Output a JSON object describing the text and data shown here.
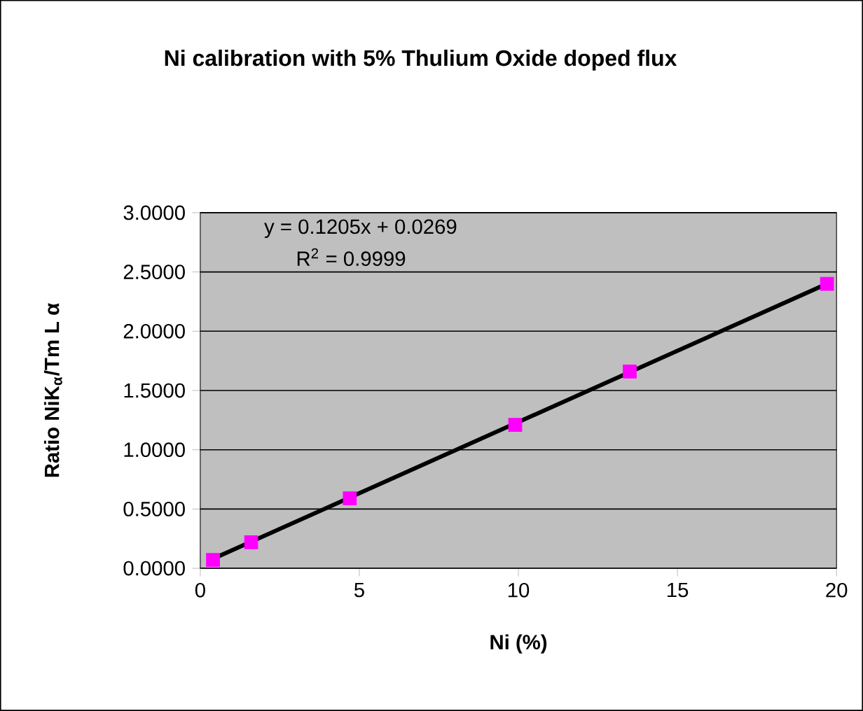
{
  "chart_data": {
    "type": "scatter",
    "title": "Ni calibration with 5% Thulium Oxide doped flux",
    "xlabel": "Ni (%)",
    "ylabel": "Ratio NiK$_{α}$/Tm L α",
    "annotations": [
      "y = 0.1205x + 0.0269",
      "R$^{2}$ = 0.9999"
    ],
    "series": [
      {
        "color": "#ff00ff",
        "marker": "square",
        "x": [
          0.4,
          1.6,
          4.7,
          9.9,
          13.5,
          19.7
        ],
        "values": [
          0.07,
          0.22,
          0.59,
          1.21,
          1.66,
          2.4
        ]
      },
      {
        "type": "line",
        "color": "#000000",
        "line_style": "solid",
        "marker": "none",
        "x": [
          0.4,
          19.7
        ],
        "values": [
          0.08,
          2.4
        ]
      }
    ],
    "xlim": [
      0,
      20
    ],
    "xticks": [
      0,
      5,
      10,
      15,
      20
    ],
    "ylim": [
      0,
      3
    ],
    "yticks": [
      {
        "value": 0,
        "label": "0.0000"
      },
      {
        "value": 0.5,
        "label": "0.5000"
      },
      {
        "value": 1,
        "label": "1.0000"
      },
      {
        "value": 1.5,
        "label": "1.5000"
      },
      {
        "value": 2,
        "label": "2.0000"
      },
      {
        "value": 2.5,
        "label": "2.5000"
      },
      {
        "value": 3,
        "label": "3.0000"
      }
    ],
    "grid": "y",
    "legend": false
  }
}
